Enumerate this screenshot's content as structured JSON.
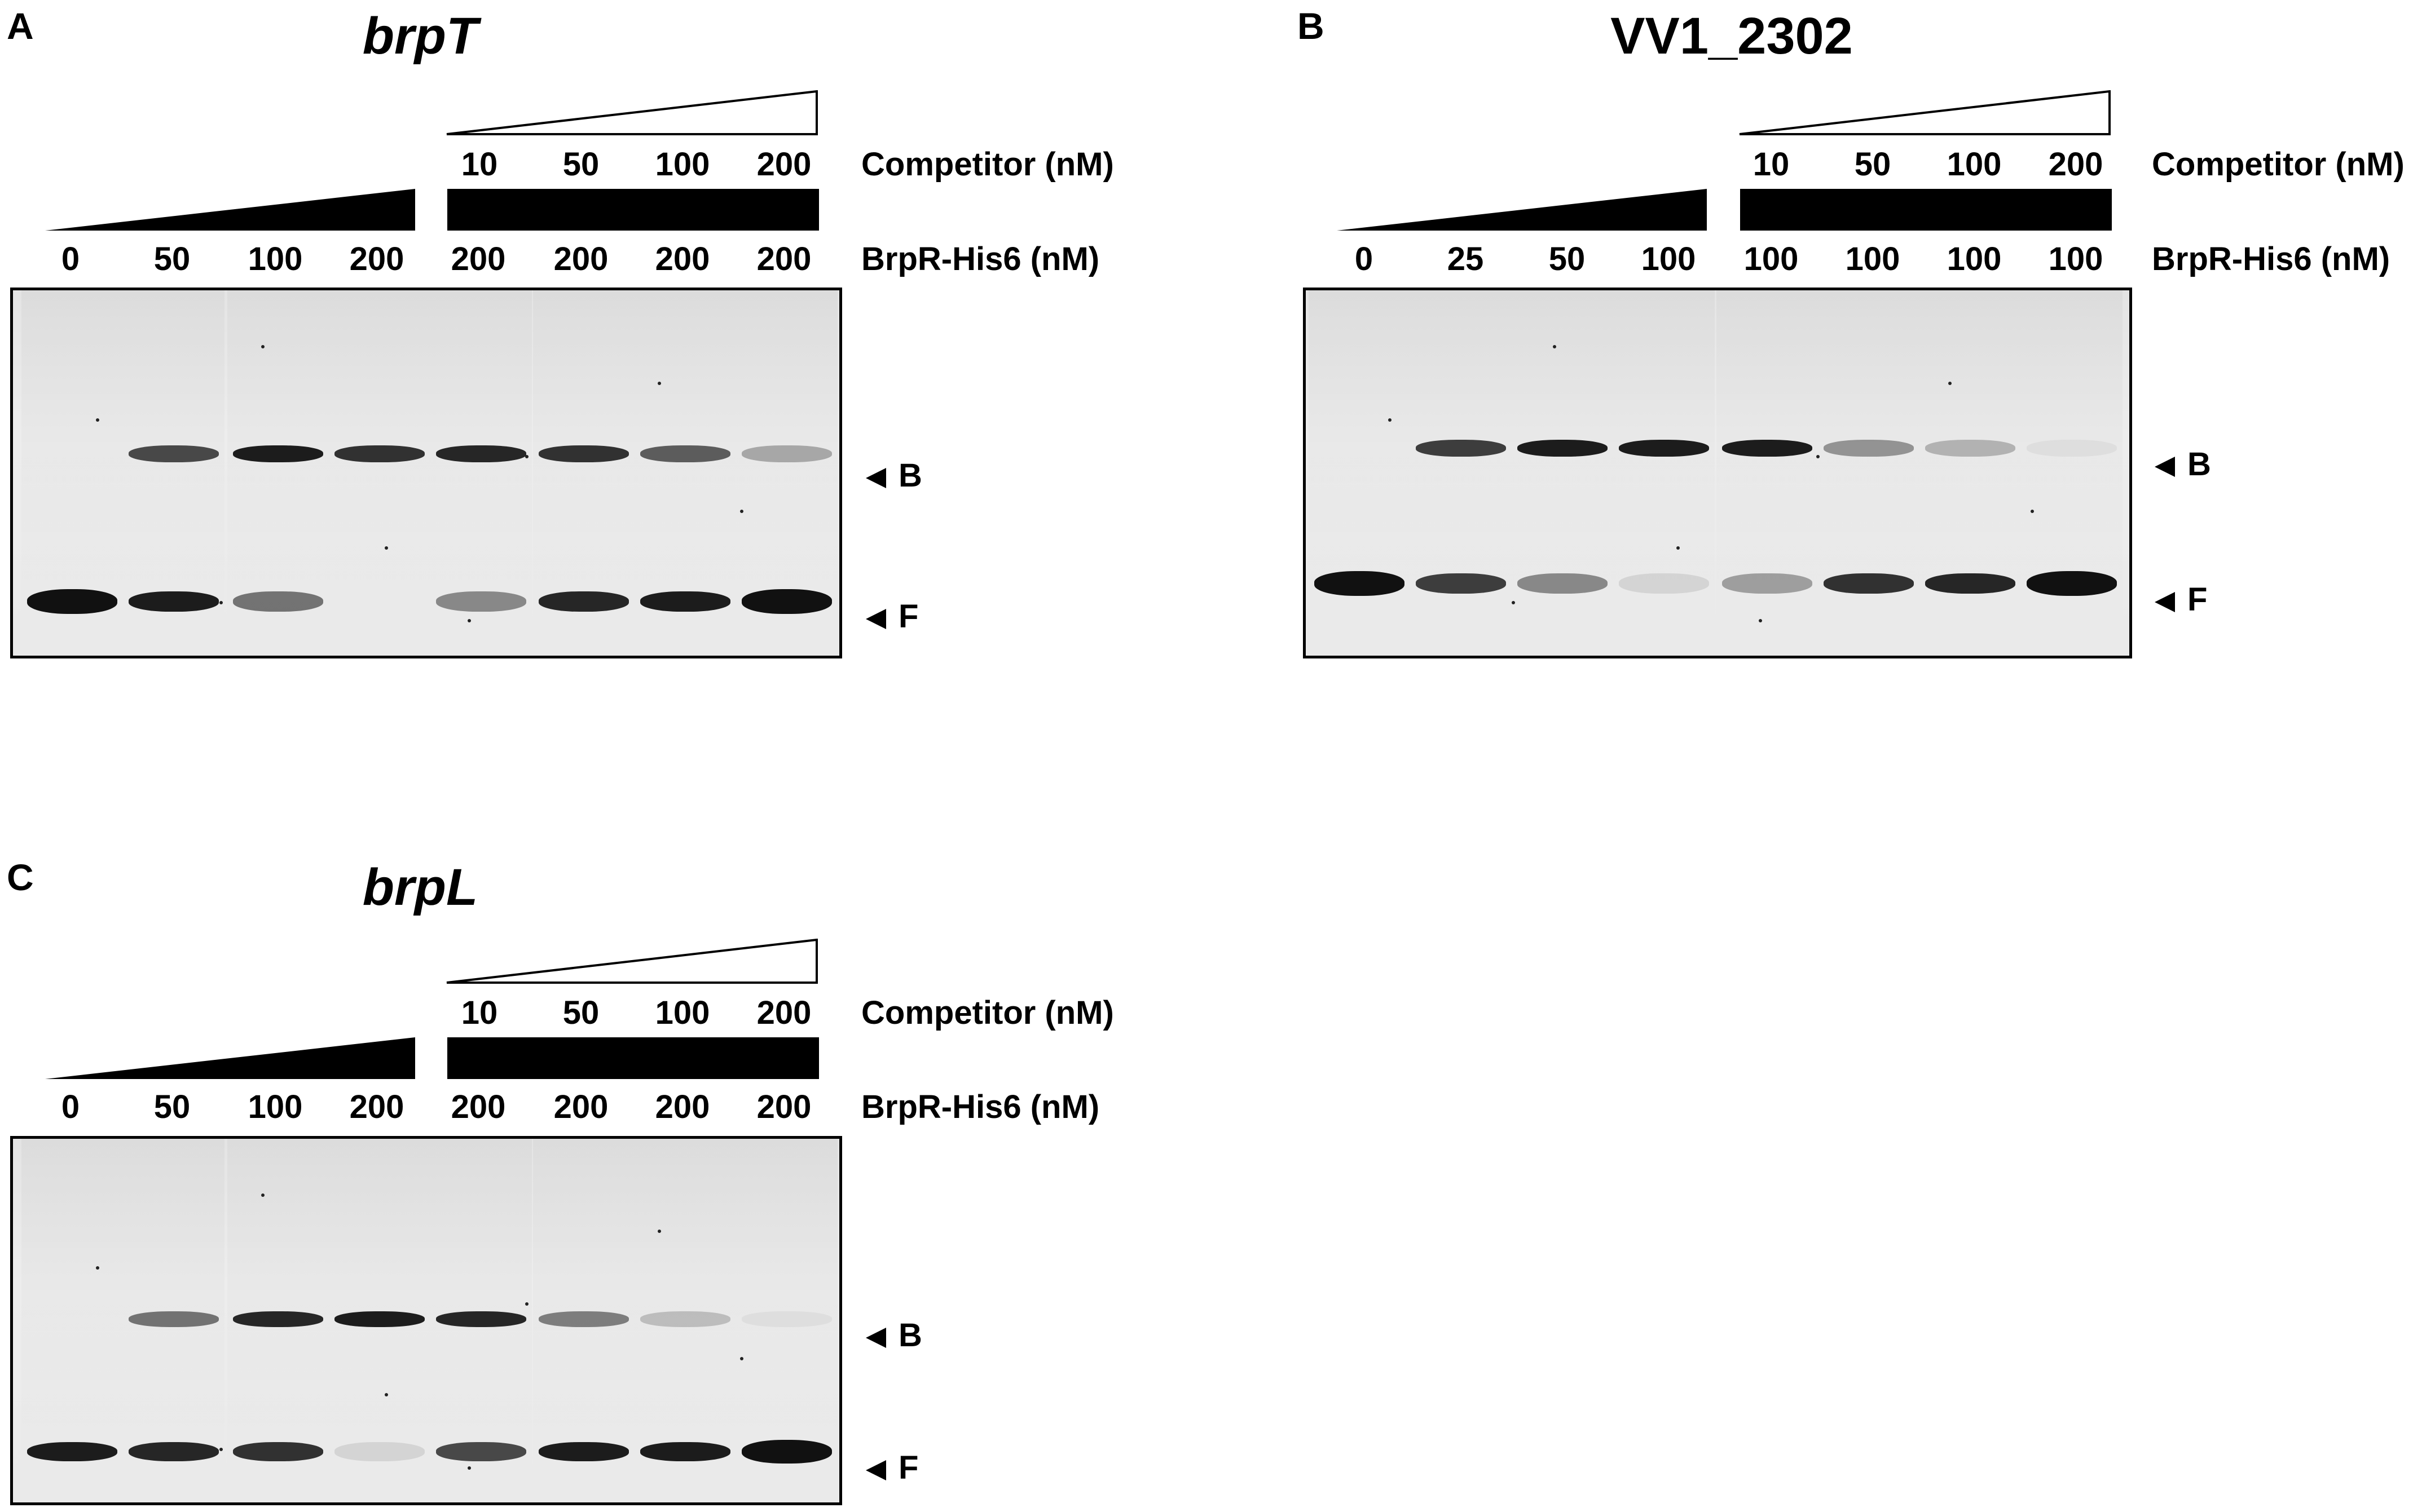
{
  "panels": [
    {
      "id": "A",
      "letter": "A",
      "title": "brpT",
      "title_italic": true,
      "competitor_label": "Competitor (nM)",
      "protein_label": "BrpR-His6 (nM)",
      "competitor_values": [
        "10",
        "50",
        "100",
        "200"
      ],
      "protein_values": [
        "0",
        "50",
        "100",
        "200",
        "200",
        "200",
        "200",
        "200"
      ],
      "band_labels": [
        "B",
        "F"
      ],
      "bound_intensity": [
        0,
        0.75,
        0.95,
        0.85,
        0.9,
        0.85,
        0.65,
        0.3
      ],
      "free_intensity": [
        1.0,
        0.95,
        0.55,
        0,
        0.45,
        0.9,
        0.95,
        1.0
      ]
    },
    {
      "id": "B",
      "letter": "B",
      "title": "VV1_2302",
      "title_italic": false,
      "competitor_label": "Competitor (nM)",
      "protein_label": "BrpR-His6 (nM)",
      "competitor_values": [
        "10",
        "50",
        "100",
        "200"
      ],
      "protein_values": [
        "0",
        "25",
        "50",
        "100",
        "100",
        "100",
        "100",
        "100"
      ],
      "band_labels": [
        "B",
        "F"
      ],
      "bound_intensity": [
        0,
        0.8,
        0.95,
        0.95,
        0.95,
        0.4,
        0.25,
        0.05
      ],
      "free_intensity": [
        1.0,
        0.8,
        0.45,
        0.1,
        0.35,
        0.85,
        0.9,
        1.0
      ]
    },
    {
      "id": "C",
      "letter": "C",
      "title": "brpL",
      "title_italic": true,
      "competitor_label": "Competitor (nM)",
      "protein_label": "BrpR-His6 (nM)",
      "competitor_values": [
        "10",
        "50",
        "100",
        "200"
      ],
      "protein_values": [
        "0",
        "50",
        "100",
        "200",
        "200",
        "200",
        "200",
        "200"
      ],
      "band_labels": [
        "B",
        "F"
      ],
      "bound_intensity": [
        0,
        0.55,
        0.9,
        0.95,
        0.9,
        0.5,
        0.2,
        0.05
      ],
      "free_intensity": [
        0.95,
        0.9,
        0.85,
        0.1,
        0.75,
        0.95,
        0.95,
        1.0
      ]
    }
  ]
}
